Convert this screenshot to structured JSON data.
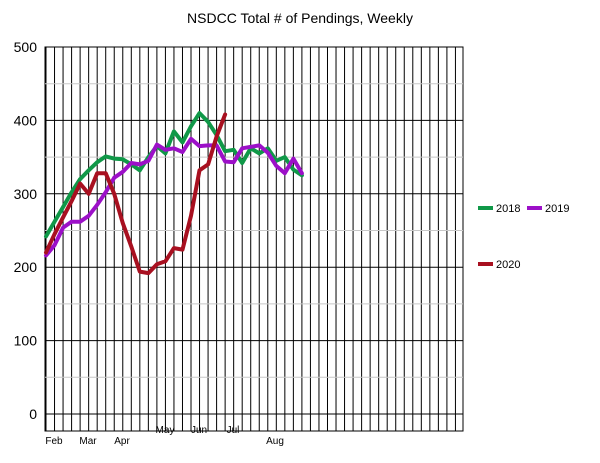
{
  "chart_data": {
    "type": "line",
    "title": "NSDCC Total # of Pendings, Weekly",
    "xlabel": "",
    "ylabel": "",
    "ylim": [
      0,
      500
    ],
    "y_ticks": [
      0,
      100,
      200,
      300,
      400,
      500
    ],
    "x_tick_labels": [
      "Feb",
      "Mar",
      "Apr",
      "May",
      "Jun",
      "Jul",
      "Aug"
    ],
    "grid": true,
    "legend_position": "right",
    "series": [
      {
        "name": "2018",
        "color": "#109848",
        "values": [
          242,
          262,
          282,
          302,
          320,
          332,
          343,
          351,
          348,
          347,
          340,
          332,
          350,
          365,
          355,
          385,
          370,
          392,
          410,
          398,
          380,
          358,
          360,
          342,
          362,
          355,
          362,
          345,
          350,
          333,
          325
        ]
      },
      {
        "name": "2019",
        "color": "#9c10c8",
        "values": [
          216,
          230,
          254,
          262,
          262,
          270,
          285,
          302,
          322,
          330,
          342,
          340,
          345,
          367,
          360,
          362,
          357,
          375,
          365,
          366,
          366,
          344,
          343,
          362,
          364,
          366,
          356,
          338,
          328,
          348,
          328
        ]
      },
      {
        "name": "2020",
        "color": "#a81020",
        "values": [
          220,
          245,
          268,
          290,
          314,
          300,
          328,
          328,
          300,
          260,
          228,
          194,
          192,
          204,
          208,
          226,
          224,
          270,
          332,
          340,
          378,
          408
        ]
      }
    ]
  }
}
